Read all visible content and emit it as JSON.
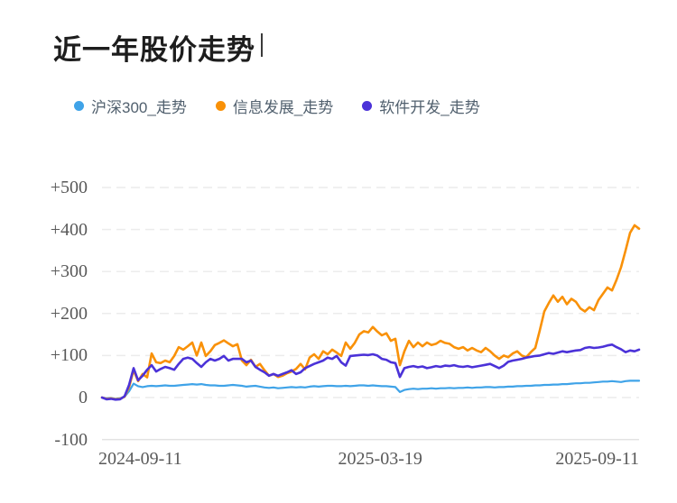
{
  "page": {
    "title": "近一年股价走势"
  },
  "chart_data": {
    "type": "line",
    "title": "近一年股价走势",
    "unit": "percent_change_vs_start",
    "grid": "horizontal dashed",
    "legend_position": "top-left",
    "x_axis": {
      "ticks": [
        {
          "label": "2024-09-11",
          "frac": 0.0,
          "align": "left"
        },
        {
          "label": "2025-03-19",
          "frac": 0.518,
          "align": "center"
        },
        {
          "label": "2025-09-11",
          "frac": 1.0,
          "align": "right"
        }
      ]
    },
    "y_axis": {
      "range": [
        -100,
        500
      ],
      "ticks": [
        {
          "label": "+500",
          "value": 500,
          "baseline": false
        },
        {
          "label": "+400",
          "value": 400,
          "baseline": false
        },
        {
          "label": "+300",
          "value": 300,
          "baseline": false
        },
        {
          "label": "+200",
          "value": 200,
          "baseline": false
        },
        {
          "label": "+100",
          "value": 100,
          "baseline": false
        },
        {
          "label": "0",
          "value": 0,
          "baseline": false
        },
        {
          "label": "-100",
          "value": -100,
          "baseline": true
        }
      ]
    },
    "series": [
      {
        "name": "沪深300_走势",
        "color": "#3FA3E8",
        "width": 2.2,
        "values": [
          0,
          -2,
          -1,
          -3,
          -2,
          2,
          15,
          33,
          27,
          25,
          27,
          28,
          27,
          28,
          29,
          28,
          28,
          29,
          30,
          31,
          32,
          31,
          32,
          30,
          29,
          29,
          28,
          28,
          29,
          30,
          29,
          28,
          26,
          27,
          28,
          26,
          24,
          23,
          24,
          22,
          23,
          24,
          25,
          24,
          25,
          24,
          26,
          27,
          26,
          27,
          28,
          28,
          27,
          27,
          28,
          27,
          28,
          29,
          29,
          28,
          29,
          28,
          27,
          27,
          26,
          25,
          13,
          18,
          20,
          21,
          20,
          21,
          21,
          22,
          21,
          22,
          22,
          23,
          22,
          23,
          23,
          24,
          23,
          24,
          24,
          25,
          25,
          24,
          25,
          25,
          26,
          26,
          27,
          27,
          28,
          28,
          29,
          29,
          30,
          30,
          31,
          31,
          32,
          32,
          33,
          34,
          34,
          35,
          35,
          36,
          37,
          38,
          38,
          39,
          38,
          37,
          39,
          40,
          40,
          40
        ]
      },
      {
        "name": "信息发展_走势",
        "color": "#F99108",
        "width": 2.6,
        "values": [
          0,
          -3,
          -2,
          -4,
          -3,
          2,
          25,
          65,
          39,
          56,
          48,
          105,
          84,
          82,
          88,
          84,
          99,
          120,
          114,
          122,
          131,
          100,
          131,
          99,
          110,
          125,
          130,
          136,
          129,
          122,
          127,
          88,
          77,
          90,
          73,
          80,
          65,
          52,
          56,
          49,
          52,
          58,
          62,
          68,
          80,
          67,
          95,
          103,
          92,
          110,
          103,
          114,
          107,
          99,
          131,
          116,
          130,
          150,
          158,
          155,
          168,
          157,
          148,
          153,
          135,
          140,
          77,
          110,
          135,
          120,
          131,
          122,
          131,
          125,
          128,
          135,
          130,
          128,
          120,
          116,
          120,
          112,
          118,
          112,
          108,
          118,
          110,
          100,
          92,
          100,
          96,
          105,
          110,
          100,
          96,
          108,
          118,
          160,
          205,
          225,
          243,
          228,
          240,
          222,
          235,
          228,
          212,
          205,
          215,
          208,
          232,
          247,
          262,
          255,
          280,
          310,
          350,
          392,
          410,
          402
        ]
      },
      {
        "name": "软件开发_走势",
        "color": "#4B32D8",
        "width": 2.6,
        "values": [
          0,
          -4,
          -3,
          -5,
          -4,
          3,
          30,
          70,
          41,
          52,
          66,
          77,
          62,
          68,
          73,
          70,
          66,
          80,
          92,
          95,
          92,
          82,
          73,
          84,
          92,
          88,
          92,
          99,
          88,
          92,
          92,
          92,
          84,
          88,
          73,
          66,
          60,
          52,
          56,
          52,
          56,
          60,
          65,
          56,
          60,
          70,
          75,
          80,
          84,
          88,
          95,
          92,
          99,
          84,
          76,
          99,
          100,
          101,
          102,
          101,
          103,
          100,
          92,
          90,
          84,
          82,
          49,
          70,
          73,
          75,
          72,
          74,
          70,
          72,
          75,
          73,
          76,
          75,
          77,
          74,
          73,
          75,
          72,
          74,
          76,
          78,
          80,
          75,
          70,
          76,
          85,
          88,
          90,
          92,
          95,
          97,
          99,
          100,
          103,
          106,
          104,
          107,
          110,
          108,
          110,
          112,
          113,
          118,
          120,
          118,
          119,
          121,
          124,
          126,
          120,
          115,
          108,
          112,
          110,
          114
        ]
      }
    ]
  }
}
